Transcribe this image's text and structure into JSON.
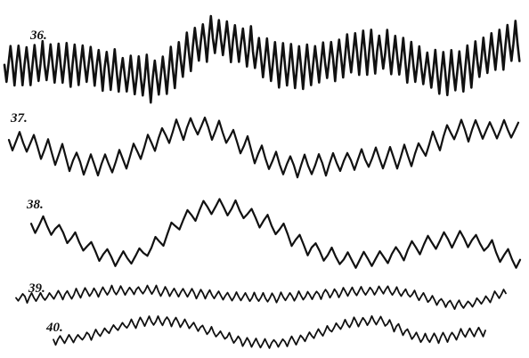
{
  "traces": [
    {
      "label": "36."
    },
    {
      "label": "37."
    },
    {
      "label": "38."
    },
    {
      "label": "39."
    },
    {
      "label": "40."
    }
  ]
}
